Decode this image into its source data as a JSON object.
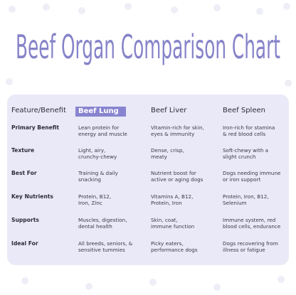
{
  "header": {
    "title": "Beef Organ Comparison Chart"
  },
  "table": {
    "columns": [
      "Feature/Benefit",
      "Beef Lung",
      "Beef Liver",
      "Beef Spleen"
    ],
    "rows": [
      [
        "Primary Benefit",
        "Lean protein for\nenergy and muscle",
        "Vitamin-rich for skin,\neyes & immunity",
        "Iron-rich for stamina\n& red blood cells"
      ],
      [
        "Texture",
        "Light, airy,\ncrunchy-chewy",
        "Dense, crisp,\nmeaty",
        "Soft-chewy with a\nslight crunch"
      ],
      [
        "Best For",
        "Training & daily\nsnacking",
        "Nutrient boost for\nactive or aging dogs",
        "Dogs needing immune\nor iron support"
      ],
      [
        "Key Nutrients",
        "Protein, B12,\nIron, Zinc",
        "Vitamins A, B12,\nProtein, Iron",
        "Protein, Iron, B12,\nSelenium"
      ],
      [
        "Supports",
        "Muscles, digestion,\ndental health",
        "Skin, coat,\nimmune function",
        "Immune system, red\nblood cells, endurance"
      ],
      [
        "Ideal For",
        "All breeds, seniors, &\nsensitive tummies",
        "Picky eaters,\nperformance dogs",
        "Dogs recovering from\nillness or fatigue"
      ]
    ]
  }
}
